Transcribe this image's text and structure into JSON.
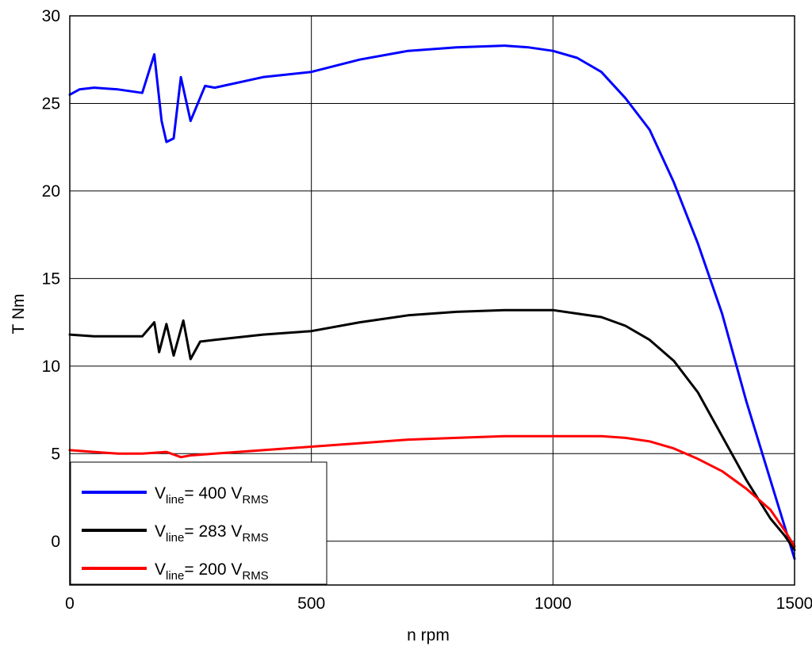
{
  "chart_data": {
    "type": "line",
    "xlabel": "n rpm",
    "ylabel": "T Nm",
    "xlim": [
      0,
      1500
    ],
    "ylim": [
      -2.5,
      30
    ],
    "xticks": [
      0,
      500,
      1000,
      1500
    ],
    "yticks": [
      0,
      5,
      10,
      15,
      20,
      25,
      30
    ],
    "xtick_labels": [
      "0",
      "500",
      "1000",
      "1500"
    ],
    "ytick_labels": [
      "0",
      "5",
      "10",
      "15",
      "20",
      "25",
      "30"
    ],
    "grid": true,
    "legend_position": "bottom-left",
    "series": [
      {
        "name": "V_line= 400 V_RMS",
        "legend": {
          "v": "V",
          "v_sub": "line",
          "eq": "= 400 V",
          "unit_sub": "RMS"
        },
        "color": "#0000ff",
        "x": [
          0,
          20,
          50,
          100,
          150,
          175,
          190,
          200,
          215,
          230,
          250,
          280,
          300,
          400,
          500,
          600,
          700,
          800,
          900,
          950,
          1000,
          1050,
          1100,
          1150,
          1200,
          1250,
          1300,
          1350,
          1400,
          1450,
          1480,
          1500
        ],
        "y": [
          25.5,
          25.8,
          25.9,
          25.8,
          25.6,
          27.8,
          24.0,
          22.8,
          23.0,
          26.5,
          24.0,
          26.0,
          25.9,
          26.5,
          26.8,
          27.5,
          28.0,
          28.2,
          28.3,
          28.2,
          28.0,
          27.6,
          26.8,
          25.3,
          23.5,
          20.5,
          17.0,
          13.0,
          8.0,
          3.5,
          0.8,
          -1.0
        ]
      },
      {
        "name": "V_line= 283 V_RMS",
        "legend": {
          "v": "V",
          "v_sub": "line",
          "eq": "= 283 V",
          "unit_sub": "RMS"
        },
        "color": "#000000",
        "x": [
          0,
          50,
          100,
          150,
          175,
          185,
          200,
          215,
          235,
          250,
          270,
          300,
          400,
          500,
          600,
          700,
          800,
          900,
          1000,
          1050,
          1100,
          1150,
          1200,
          1250,
          1300,
          1350,
          1400,
          1450,
          1480,
          1500
        ],
        "y": [
          11.8,
          11.7,
          11.7,
          11.7,
          12.5,
          10.8,
          12.4,
          10.6,
          12.6,
          10.4,
          11.4,
          11.5,
          11.8,
          12.0,
          12.5,
          12.9,
          13.1,
          13.2,
          13.2,
          13.0,
          12.8,
          12.3,
          11.5,
          10.3,
          8.5,
          6.0,
          3.5,
          1.3,
          0.3,
          -0.5
        ]
      },
      {
        "name": "V_line= 200 V_RMS",
        "legend": {
          "v": "V",
          "v_sub": "line",
          "eq": "= 200 V",
          "unit_sub": "RMS"
        },
        "color": "#ff0000",
        "x": [
          0,
          50,
          100,
          150,
          200,
          230,
          250,
          300,
          400,
          500,
          600,
          700,
          800,
          900,
          1000,
          1050,
          1100,
          1150,
          1200,
          1250,
          1300,
          1350,
          1400,
          1450,
          1480,
          1500
        ],
        "y": [
          5.2,
          5.1,
          5.0,
          5.0,
          5.1,
          4.8,
          4.9,
          5.0,
          5.2,
          5.4,
          5.6,
          5.8,
          5.9,
          6.0,
          6.0,
          6.0,
          6.0,
          5.9,
          5.7,
          5.3,
          4.7,
          4.0,
          3.0,
          1.8,
          0.6,
          -0.3
        ]
      }
    ]
  }
}
